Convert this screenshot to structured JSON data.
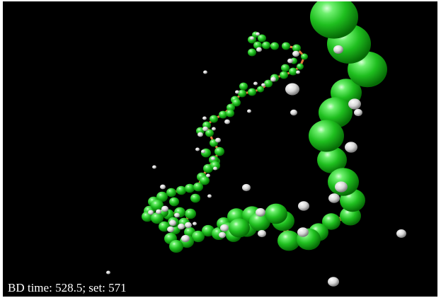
{
  "window": {
    "background_color": "#000000"
  },
  "status": {
    "bd_time_label": "BD time:",
    "bd_time_value": "528.5",
    "separator": ";",
    "set_label": "set:",
    "set_value": "571"
  },
  "scene": {
    "bead_color": "#22c422",
    "bond_color": "#e8702a",
    "particle_color": "#e8e8e8"
  }
}
